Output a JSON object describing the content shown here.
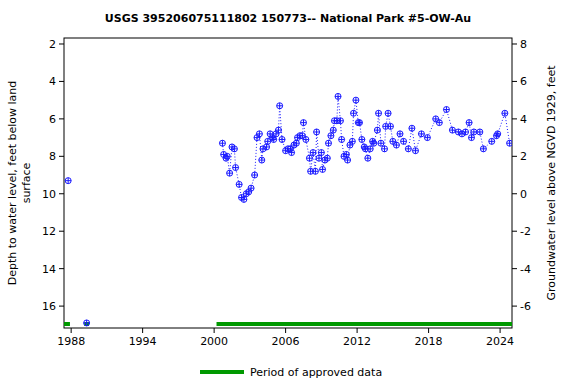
{
  "chart_data": {
    "type": "scatter",
    "title": "USGS 395206075111802 150773-- National Park #5-OW-Au",
    "y_label": [
      "Depth to water level, feet below land",
      "surface"
    ],
    "y2_label": "Groundwater level above NGVD 1929, feet",
    "xlim": [
      1987.4,
      2025.0
    ],
    "xticks": [
      1988,
      1994,
      2000,
      2006,
      2012,
      2018,
      2024
    ],
    "ylim": [
      17.17,
      1.68
    ],
    "yticks": [
      2,
      4,
      6,
      8,
      10,
      12,
      14,
      16
    ],
    "y2lim": [
      -7.17,
      8.32
    ],
    "y2ticks": [
      -6,
      -4,
      -2,
      0,
      2,
      4,
      6,
      8
    ],
    "grid": false,
    "series": [
      {
        "color": "#1a1aff",
        "marker": "circle-plus",
        "line_style": "dotted",
        "x": [
          1987.75,
          null,
          1989.3,
          null,
          2000.7,
          2000.8,
          2001.0,
          2001.1,
          2001.3,
          2001.5,
          2001.7,
          2001.8,
          2002.1,
          2002.3,
          2002.5,
          2002.7,
          2002.9,
          2003.1,
          2003.4,
          2003.6,
          2003.8,
          2004.0,
          2004.1,
          2004.4,
          2004.5,
          2004.7,
          2004.9,
          2005.0,
          2005.2,
          2005.4,
          2005.5,
          2005.7,
          2006.0,
          2006.2,
          2006.4,
          2006.5,
          2006.7,
          2006.9,
          2007.0,
          2007.2,
          2007.4,
          2007.5,
          2007.7,
          2008.0,
          2008.1,
          2008.3,
          2008.5,
          2008.6,
          2008.8,
          2009.0,
          2009.1,
          2009.3,
          2009.5,
          2009.6,
          2009.8,
          2010.0,
          2010.1,
          2010.3,
          2010.4,
          2010.6,
          2010.7,
          2010.9,
          2011.1,
          2011.2,
          2011.4,
          2011.6,
          2011.7,
          2011.9,
          2012.1,
          2012.2,
          2012.4,
          2012.6,
          2012.7,
          2012.9,
          2013.1,
          2013.3,
          2013.4,
          2013.7,
          2013.8,
          2014.0,
          2014.3,
          2014.4,
          2014.6,
          2014.8,
          2015.0,
          2015.3,
          2015.6,
          2015.9,
          2016.3,
          2016.6,
          2016.9,
          2017.4,
          2017.9,
          2018.6,
          2018.9,
          2019.5,
          2020.0,
          2020.5,
          2020.8,
          2021.1,
          2021.4,
          2021.6,
          2021.8,
          2022.3,
          2022.6,
          2023.3,
          2023.7,
          2023.8,
          2024.4,
          2024.8
        ],
        "values": [
          9.3,
          null,
          16.9,
          null,
          7.3,
          7.9,
          8.1,
          8.0,
          8.9,
          7.5,
          7.6,
          8.6,
          9.5,
          10.2,
          10.3,
          10.0,
          9.9,
          9.7,
          9.0,
          7.0,
          6.8,
          8.2,
          7.6,
          7.5,
          7.2,
          6.8,
          7.0,
          7.1,
          6.8,
          6.6,
          5.3,
          7.1,
          7.7,
          7.6,
          7.6,
          7.8,
          7.4,
          7.3,
          7.0,
          6.9,
          6.9,
          6.2,
          7.1,
          8.1,
          8.8,
          7.8,
          8.8,
          6.7,
          8.1,
          7.8,
          8.7,
          8.2,
          8.1,
          7.3,
          6.9,
          6.6,
          6.1,
          6.1,
          4.8,
          6.1,
          7.1,
          8.0,
          7.9,
          8.2,
          7.4,
          7.2,
          5.7,
          5.0,
          6.2,
          6.2,
          7.1,
          7.5,
          7.6,
          8.1,
          7.6,
          7.2,
          7.3,
          6.6,
          5.7,
          7.3,
          7.6,
          6.4,
          5.7,
          6.4,
          7.2,
          7.4,
          6.8,
          7.2,
          7.6,
          6.5,
          7.7,
          6.8,
          7.0,
          6.0,
          6.2,
          5.5,
          6.6,
          6.7,
          6.8,
          6.7,
          6.2,
          7.0,
          6.7,
          6.7,
          7.6,
          7.2,
          6.9,
          6.8,
          5.7,
          7.3
        ]
      }
    ],
    "approved_periods": [
      [
        1987.4,
        1987.9
      ],
      [
        1989.1,
        1989.5
      ],
      [
        2000.2,
        2025.0
      ]
    ],
    "approved_color": "#009900",
    "approved_label": "Period of approved data"
  }
}
